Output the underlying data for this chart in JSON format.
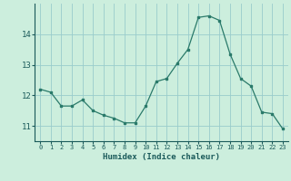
{
  "x": [
    0,
    1,
    2,
    3,
    4,
    5,
    6,
    7,
    8,
    9,
    10,
    11,
    12,
    13,
    14,
    15,
    16,
    17,
    18,
    19,
    20,
    21,
    22,
    23
  ],
  "y": [
    12.2,
    12.1,
    11.65,
    11.65,
    11.85,
    11.5,
    11.35,
    11.25,
    11.1,
    11.1,
    11.65,
    12.45,
    12.55,
    13.05,
    13.5,
    14.55,
    14.6,
    14.45,
    13.35,
    12.55,
    12.3,
    11.45,
    11.4,
    10.9
  ],
  "xlabel": "Humidex (Indice chaleur)",
  "line_color": "#2a7a6a",
  "bg_color": "#cceedd",
  "grid_color": "#99cccc",
  "tick_color": "#1a5a5a",
  "xlim": [
    -0.5,
    23.5
  ],
  "ylim": [
    10.5,
    15.0
  ],
  "yticks": [
    11,
    12,
    13,
    14
  ],
  "xticks": [
    0,
    1,
    2,
    3,
    4,
    5,
    6,
    7,
    8,
    9,
    10,
    11,
    12,
    13,
    14,
    15,
    16,
    17,
    18,
    19,
    20,
    21,
    22,
    23
  ]
}
